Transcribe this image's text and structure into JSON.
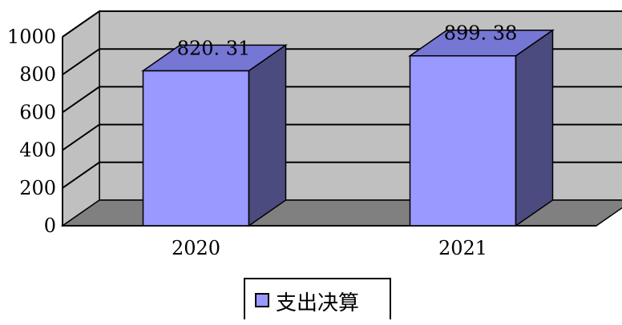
{
  "chart_data": {
    "type": "bar",
    "style": "3d-clustered-column",
    "categories": [
      "2020",
      "2021"
    ],
    "series": [
      {
        "name": "支出决算",
        "values": [
          820.31,
          899.38
        ]
      }
    ],
    "data_labels": [
      "820. 31",
      "899. 38"
    ],
    "title": "",
    "xlabel": "",
    "ylabel": "",
    "ylim": [
      0,
      1000
    ],
    "yticks": [
      0,
      200,
      400,
      600,
      800,
      1000
    ],
    "grid": true,
    "legend_position": "bottom",
    "colors": {
      "bar_front": "#9999ff",
      "bar_side": "#4b4b7f",
      "bar_top": "#7676d4",
      "back_wall": "#c0c0c0",
      "floor": "#808080"
    }
  }
}
